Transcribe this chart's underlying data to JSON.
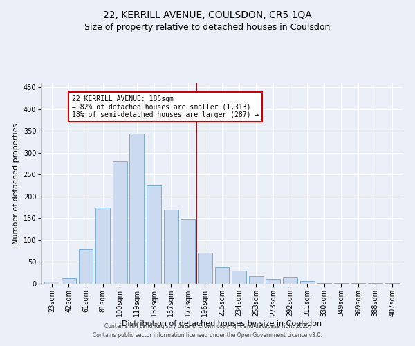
{
  "title1": "22, KERRILL AVENUE, COULSDON, CR5 1QA",
  "title2": "Size of property relative to detached houses in Coulsdon",
  "xlabel": "Distribution of detached houses by size in Coulsdon",
  "ylabel": "Number of detached properties",
  "categories": [
    "23sqm",
    "42sqm",
    "61sqm",
    "81sqm",
    "100sqm",
    "119sqm",
    "138sqm",
    "157sqm",
    "177sqm",
    "196sqm",
    "215sqm",
    "234sqm",
    "253sqm",
    "273sqm",
    "292sqm",
    "311sqm",
    "330sqm",
    "349sqm",
    "369sqm",
    "388sqm",
    "407sqm"
  ],
  "values": [
    5,
    13,
    79,
    175,
    280,
    345,
    225,
    170,
    147,
    72,
    38,
    30,
    17,
    11,
    15,
    6,
    2,
    1,
    1,
    1,
    2
  ],
  "bar_color": "#ccdaf0",
  "bar_edge_color": "#7aafd4",
  "vline_x": 8.5,
  "vline_color": "#8b0000",
  "annotation_text": "22 KERRILL AVENUE: 185sqm\n← 82% of detached houses are smaller (1,313)\n18% of semi-detached houses are larger (287) →",
  "annotation_box_color": "white",
  "annotation_box_edge_color": "#cc0000",
  "ylim": [
    0,
    460
  ],
  "yticks": [
    0,
    50,
    100,
    150,
    200,
    250,
    300,
    350,
    400,
    450
  ],
  "footer1": "Contains HM Land Registry data © Crown copyright and database right 2025.",
  "footer2": "Contains public sector information licensed under the Open Government Licence v3.0.",
  "bg_color": "#eaeff8",
  "plot_bg_color": "#eaeff8",
  "grid_color": "#ffffff",
  "title_fontsize": 10,
  "subtitle_fontsize": 9,
  "tick_fontsize": 7,
  "ylabel_fontsize": 8,
  "xlabel_fontsize": 8,
  "annotation_fontsize": 7,
  "footer_fontsize": 5.5
}
